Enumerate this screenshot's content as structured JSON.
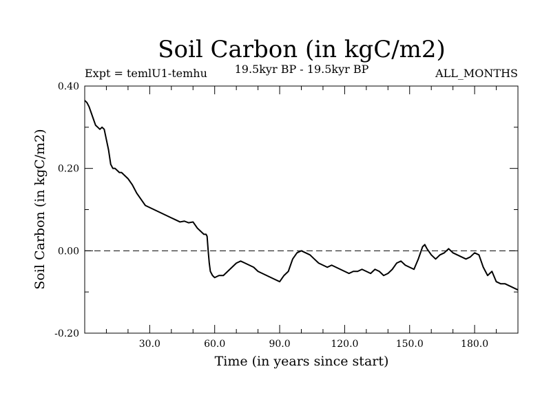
{
  "chart_data": {
    "type": "line",
    "title": "Soil Carbon (in kgC/m2)",
    "subtitle_left": "Expt = temlU1-temhu",
    "subtitle_center": "19.5kyr BP - 19.5kyr BP",
    "subtitle_right": "ALL_MONTHS",
    "xlabel": "Time (in years since start)",
    "ylabel": "Soil Carbon (in kgC/m2)",
    "xlim": [
      0,
      200
    ],
    "ylim": [
      -0.2,
      0.4
    ],
    "xticks": [
      {
        "value": 30,
        "label": "30.0"
      },
      {
        "value": 60,
        "label": "60.0"
      },
      {
        "value": 90,
        "label": "90.0"
      },
      {
        "value": 120,
        "label": "120.0"
      },
      {
        "value": 150,
        "label": "150.0"
      },
      {
        "value": 180,
        "label": "180.0"
      }
    ],
    "yticks": [
      {
        "value": 0.4,
        "label": "0.40"
      },
      {
        "value": 0.2,
        "label": "0.20"
      },
      {
        "value": 0.0,
        "label": "0.00"
      },
      {
        "value": -0.2,
        "label": "-0.20"
      }
    ],
    "reference_line": {
      "y": 0.0,
      "style": "dashed"
    },
    "series": [
      {
        "name": "Soil Carbon",
        "x": [
          0,
          1,
          2,
          3,
          4,
          5,
          6,
          7,
          8,
          9,
          10,
          11,
          12,
          13,
          14,
          15,
          16,
          17,
          18,
          19,
          20,
          22,
          24,
          26,
          28,
          30,
          32,
          34,
          36,
          38,
          40,
          42,
          44,
          46,
          48,
          50,
          52,
          54,
          55,
          56,
          56.5,
          57,
          57.5,
          58,
          59,
          60,
          62,
          64,
          66,
          68,
          70,
          72,
          74,
          76,
          78,
          80,
          82,
          84,
          86,
          88,
          90,
          92,
          94,
          96,
          98,
          100,
          102,
          104,
          106,
          108,
          110,
          112,
          114,
          116,
          118,
          120,
          122,
          124,
          126,
          128,
          130,
          132,
          134,
          136,
          138,
          140,
          142,
          144,
          146,
          148,
          150,
          152,
          154,
          156,
          157,
          158,
          160,
          162,
          164,
          166,
          168,
          170,
          172,
          174,
          176,
          178,
          180,
          182,
          184,
          186,
          188,
          190,
          192,
          194,
          196,
          198,
          200
        ],
        "y": [
          0.365,
          0.36,
          0.35,
          0.335,
          0.32,
          0.305,
          0.3,
          0.295,
          0.3,
          0.295,
          0.27,
          0.245,
          0.21,
          0.2,
          0.2,
          0.195,
          0.19,
          0.19,
          0.185,
          0.18,
          0.175,
          0.16,
          0.14,
          0.125,
          0.11,
          0.105,
          0.1,
          0.095,
          0.09,
          0.085,
          0.08,
          0.075,
          0.07,
          0.072,
          0.068,
          0.07,
          0.055,
          0.045,
          0.04,
          0.04,
          0.035,
          0.0,
          -0.03,
          -0.05,
          -0.06,
          -0.065,
          -0.06,
          -0.06,
          -0.05,
          -0.04,
          -0.03,
          -0.025,
          -0.03,
          -0.035,
          -0.04,
          -0.05,
          -0.055,
          -0.06,
          -0.065,
          -0.07,
          -0.075,
          -0.06,
          -0.05,
          -0.02,
          -0.005,
          0.0,
          -0.005,
          -0.01,
          -0.02,
          -0.03,
          -0.035,
          -0.04,
          -0.035,
          -0.04,
          -0.045,
          -0.05,
          -0.055,
          -0.05,
          -0.05,
          -0.045,
          -0.05,
          -0.055,
          -0.045,
          -0.05,
          -0.06,
          -0.055,
          -0.045,
          -0.03,
          -0.025,
          -0.035,
          -0.04,
          -0.045,
          -0.02,
          0.01,
          0.015,
          0.005,
          -0.01,
          -0.02,
          -0.01,
          -0.005,
          0.005,
          -0.005,
          -0.01,
          -0.015,
          -0.02,
          -0.015,
          -0.005,
          -0.01,
          -0.04,
          -0.06,
          -0.05,
          -0.075,
          -0.08,
          -0.08,
          -0.085,
          -0.09,
          -0.095
        ]
      }
    ]
  }
}
